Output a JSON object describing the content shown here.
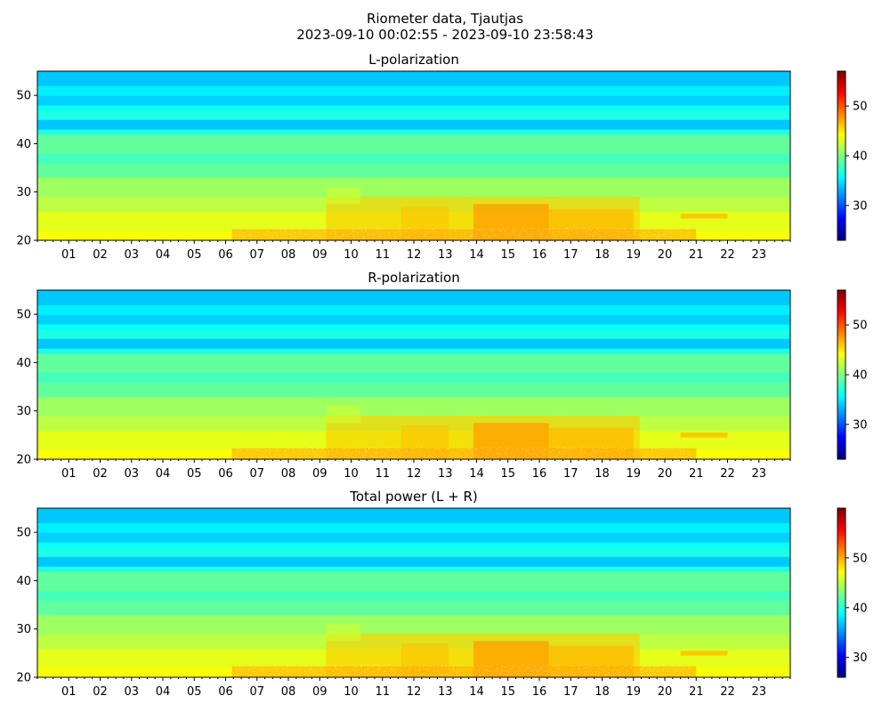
{
  "figure": {
    "title_line1": "Riometer data, Tjautjas",
    "title_line2": "2023-09-10 00:02:55 - 2023-09-10 23:58:43"
  },
  "chart_data": [
    {
      "type": "heatmap",
      "title": "L-polarization",
      "x_ticks": [
        "01",
        "02",
        "03",
        "04",
        "05",
        "06",
        "07",
        "08",
        "09",
        "10",
        "11",
        "12",
        "13",
        "14",
        "15",
        "16",
        "17",
        "18",
        "19",
        "20",
        "21",
        "22",
        "23"
      ],
      "xlim": [
        0,
        24
      ],
      "y_ticks": [
        20,
        30,
        40,
        50
      ],
      "ylim": [
        20,
        55
      ],
      "colorbar_ticks": [
        30,
        40,
        50
      ],
      "colorbar_range": [
        23,
        57
      ],
      "colormap": "jet"
    },
    {
      "type": "heatmap",
      "title": "R-polarization",
      "x_ticks": [
        "01",
        "02",
        "03",
        "04",
        "05",
        "06",
        "07",
        "08",
        "09",
        "10",
        "11",
        "12",
        "13",
        "14",
        "15",
        "16",
        "17",
        "18",
        "19",
        "20",
        "21",
        "22",
        "23"
      ],
      "xlim": [
        0,
        24
      ],
      "y_ticks": [
        20,
        30,
        40,
        50
      ],
      "ylim": [
        20,
        55
      ],
      "colorbar_ticks": [
        30,
        40,
        50
      ],
      "colorbar_range": [
        23,
        57
      ],
      "colormap": "jet"
    },
    {
      "type": "heatmap",
      "title": "Total power (L + R)",
      "x_ticks": [
        "01",
        "02",
        "03",
        "04",
        "05",
        "06",
        "07",
        "08",
        "09",
        "10",
        "11",
        "12",
        "13",
        "14",
        "15",
        "16",
        "17",
        "18",
        "19",
        "20",
        "21",
        "22",
        "23"
      ],
      "xlim": [
        0,
        24
      ],
      "y_ticks": [
        20,
        30,
        40,
        50
      ],
      "ylim": [
        20,
        55
      ],
      "colorbar_ticks": [
        30,
        40,
        50
      ],
      "colorbar_range": [
        26,
        60
      ],
      "colormap": "jet"
    }
  ]
}
